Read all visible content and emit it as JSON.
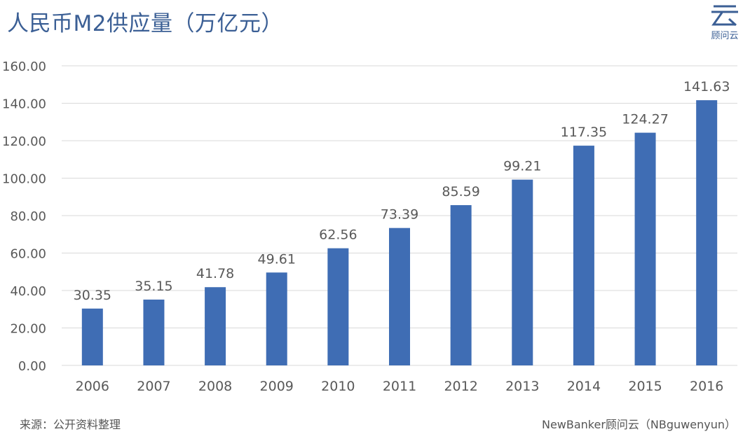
{
  "title": "人民币M2供应量（万亿元）",
  "logo": {
    "icon": "cloud-logo-icon",
    "text": "顾问云",
    "color": "#3b5f95"
  },
  "footer": {
    "source": "来源：公开资料整理",
    "credit": "NewBanker顾问云（NBguwenyun）"
  },
  "colors": {
    "bar": "#3f6db4",
    "grid": "#d9d9d9",
    "label": "#595959",
    "title": "#3b5f95"
  },
  "chart_data": {
    "type": "bar",
    "categories": [
      "2006",
      "2007",
      "2008",
      "2009",
      "2010",
      "2011",
      "2012",
      "2013",
      "2014",
      "2015",
      "2016"
    ],
    "values": [
      30.35,
      35.15,
      41.78,
      49.61,
      62.56,
      73.39,
      85.59,
      99.21,
      117.35,
      124.27,
      141.63
    ],
    "value_labels": [
      "30.35",
      "35.15",
      "41.78",
      "49.61",
      "62.56",
      "73.39",
      "85.59",
      "99.21",
      "117.35",
      "124.27",
      "141.63"
    ],
    "y_ticks": [
      "0.00",
      "20.00",
      "40.00",
      "60.00",
      "80.00",
      "100.00",
      "120.00",
      "140.00",
      "160.00"
    ],
    "ylim": [
      0,
      160
    ],
    "grid": true,
    "legend": "none"
  }
}
